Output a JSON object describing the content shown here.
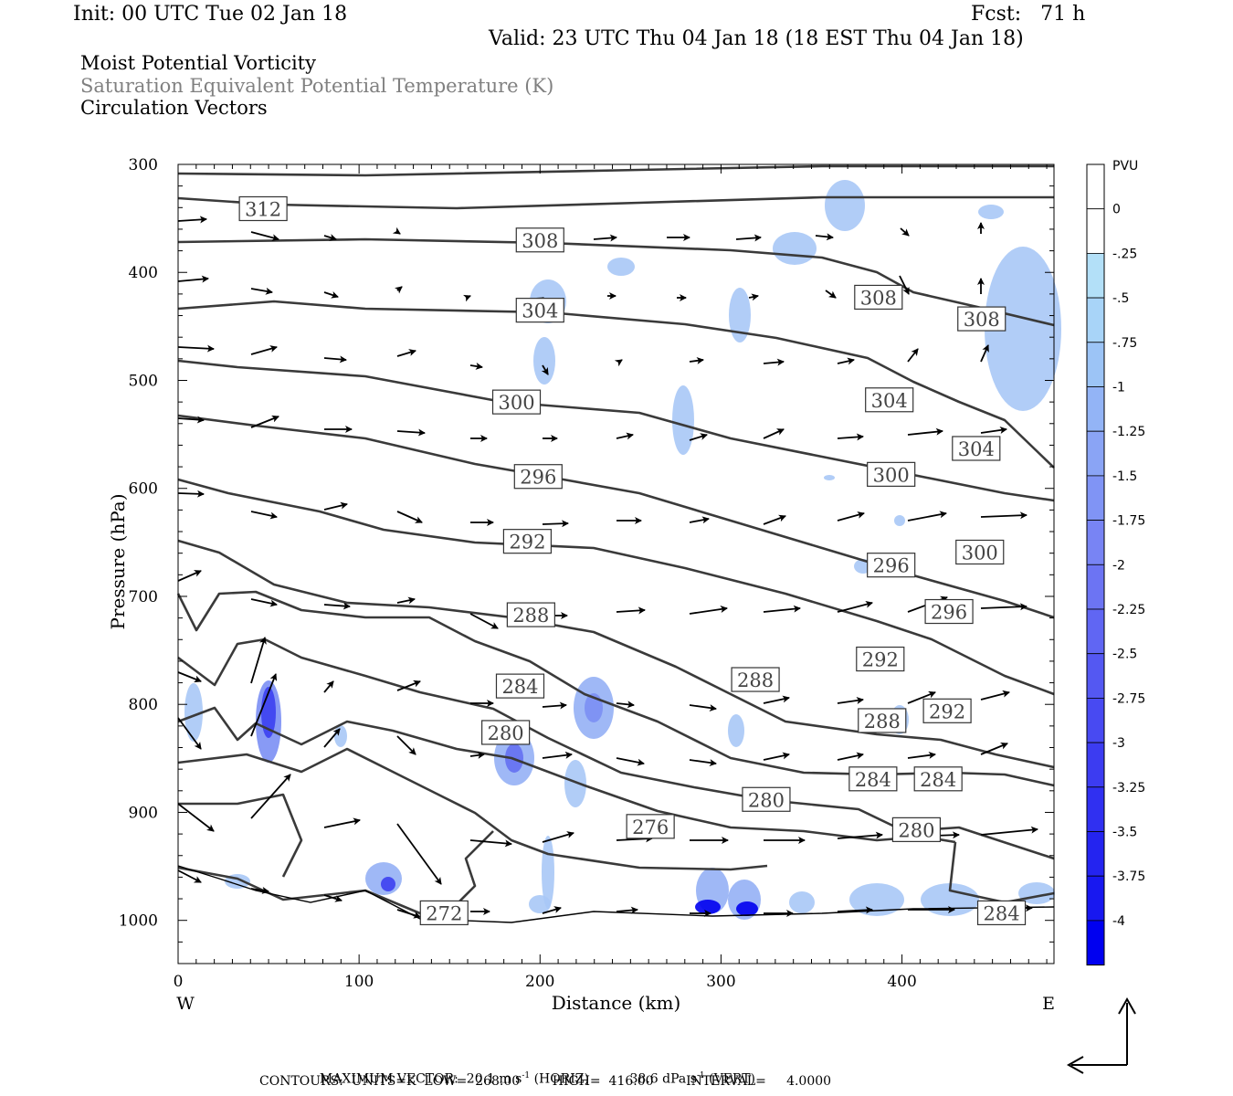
{
  "header": {
    "init": "Init: 00 UTC Tue 02 Jan 18",
    "fcst": "Fcst:   71 h",
    "valid": "Valid: 23 UTC Thu 04 Jan 18 (18 EST Thu 04 Jan 18)",
    "field1": "Moist Potential Vorticity",
    "field2": "Saturation Equivalent Potential Temperature (K)",
    "field3": "Circulation Vectors"
  },
  "colors": {
    "contour": "#3a3a3a",
    "pv_light": "#b3e0f8",
    "pv_dark": "#0000f0",
    "field2_text": "#808080"
  },
  "chart_data": {
    "type": "contour",
    "xlabel": "Distance (km)",
    "ylabel": "Pressure (hPa)",
    "xlim": [
      0,
      484
    ],
    "ylim": [
      1040,
      300
    ],
    "x_ticks": [
      "0",
      "100",
      "200",
      "300",
      "400"
    ],
    "y_ticks": [
      "300",
      "400",
      "500",
      "600",
      "700",
      "800",
      "900",
      "1000"
    ],
    "x_left_label": "W",
    "x_right_label": "E",
    "colorbar": {
      "units": "PVU",
      "levels": [
        "0",
        "-.25",
        "-.5",
        "-.75",
        "-1",
        "-1.25",
        "-1.5",
        "-1.75",
        "-2",
        "-2.25",
        "-2.5",
        "-2.75",
        "-3",
        "-3.25",
        "-3.5",
        "-3.75",
        "-4"
      ]
    },
    "contour_labels": [
      {
        "v": "312",
        "x": 47,
        "p": 341
      },
      {
        "v": "308",
        "x": 200,
        "p": 370
      },
      {
        "v": "308",
        "x": 387,
        "p": 423
      },
      {
        "v": "308",
        "x": 444,
        "p": 443
      },
      {
        "v": "304",
        "x": 200,
        "p": 435
      },
      {
        "v": "304",
        "x": 393,
        "p": 518
      },
      {
        "v": "304",
        "x": 441,
        "p": 563
      },
      {
        "v": "300",
        "x": 187,
        "p": 520
      },
      {
        "v": "300",
        "x": 394,
        "p": 587
      },
      {
        "v": "300",
        "x": 443,
        "p": 659
      },
      {
        "v": "296",
        "x": 199,
        "p": 589
      },
      {
        "v": "296",
        "x": 394,
        "p": 671
      },
      {
        "v": "296",
        "x": 426,
        "p": 714
      },
      {
        "v": "292",
        "x": 193,
        "p": 649
      },
      {
        "v": "292",
        "x": 388,
        "p": 758
      },
      {
        "v": "292",
        "x": 425,
        "p": 806
      },
      {
        "v": "288",
        "x": 195,
        "p": 717
      },
      {
        "v": "288",
        "x": 319,
        "p": 777
      },
      {
        "v": "288",
        "x": 389,
        "p": 815
      },
      {
        "v": "284",
        "x": 189,
        "p": 783
      },
      {
        "v": "284",
        "x": 384,
        "p": 869
      },
      {
        "v": "284",
        "x": 420,
        "p": 869
      },
      {
        "v": "280",
        "x": 181,
        "p": 826
      },
      {
        "v": "280",
        "x": 325,
        "p": 888
      },
      {
        "v": "280",
        "x": 408,
        "p": 916
      },
      {
        "v": "276",
        "x": 261,
        "p": 913
      },
      {
        "v": "272",
        "x": 147,
        "p": 993
      },
      {
        "v": "284",
        "x": 455,
        "p": 993
      }
    ],
    "footer": {
      "max_vector_label": "MAXIMUM VECTOR:",
      "max_vector_horiz": "20.1 m s",
      "horiz_exp": "-1",
      "horiz_tag": "(HORIZ)",
      "max_vector_vert": "38.6 dPa s",
      "vert_exp": "-1",
      "vert_tag": "(VERT)",
      "contours": "CONTOURS:  UNITS=K  LOW=  268.00        HIGH=  416.00        INTERVAL=     4.0000"
    }
  }
}
